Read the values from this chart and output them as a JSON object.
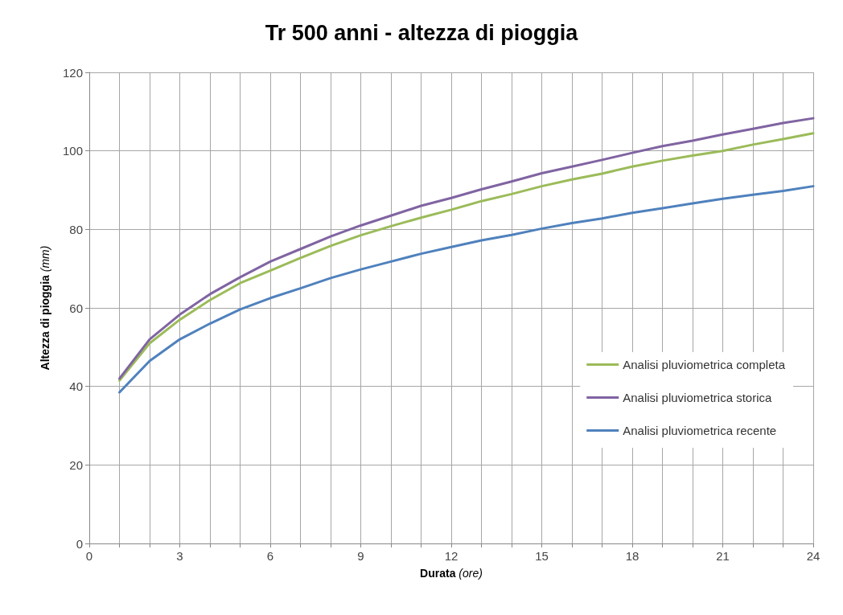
{
  "chart_data": {
    "type": "line",
    "title": "Tr 500 anni - altezza di pioggia",
    "xlabel": "Durata (ore)",
    "ylabel": "Altezza di pioggia (mm)",
    "x": [
      1,
      2,
      3,
      4,
      5,
      6,
      7,
      8,
      9,
      10,
      11,
      12,
      13,
      14,
      15,
      16,
      17,
      18,
      19,
      20,
      21,
      22,
      23,
      24
    ],
    "series": [
      {
        "name": "Analisi pluviometrica completa",
        "color": "#9bbb59",
        "values": [
          41.5,
          51,
          57,
          62,
          66.3,
          69.5,
          72.7,
          75.8,
          78.5,
          80.8,
          83,
          85,
          87.2,
          89,
          91,
          92.7,
          94.2,
          96,
          97.5,
          98.8,
          100,
          101.6,
          103,
          104.5
        ]
      },
      {
        "name": "Analisi pluviometrica storica",
        "color": "#8064a2",
        "values": [
          42,
          52,
          58.3,
          63.5,
          67.8,
          71.8,
          75,
          78.2,
          81,
          83.5,
          86,
          88,
          90.2,
          92.2,
          94.3,
          96,
          97.7,
          99.5,
          101.2,
          102.6,
          104.2,
          105.6,
          107.1,
          108.3
        ]
      },
      {
        "name": "Analisi pluviometrica recente",
        "color": "#4f81bd",
        "values": [
          38.5,
          46.5,
          52,
          56,
          59.6,
          62.5,
          65,
          67.6,
          69.8,
          71.8,
          73.8,
          75.5,
          77.2,
          78.6,
          80.2,
          81.6,
          82.8,
          84.2,
          85.4,
          86.6,
          87.8,
          88.8,
          89.8,
          91
        ]
      }
    ],
    "xlim": [
      0,
      24
    ],
    "xticks": [
      0,
      {
        "value": 1,
        "label": null
      },
      {
        "value": 2,
        "label": null
      },
      3,
      {
        "value": 4,
        "label": null
      },
      {
        "value": 5,
        "label": null
      },
      6,
      {
        "value": 7,
        "label": null
      },
      {
        "value": 8,
        "label": null
      },
      9,
      {
        "value": 10,
        "label": null
      },
      {
        "value": 11,
        "label": null
      },
      12,
      {
        "value": 13,
        "label": null
      },
      {
        "value": 14,
        "label": null
      },
      15,
      {
        "value": 16,
        "label": null
      },
      {
        "value": 17,
        "label": null
      },
      18,
      {
        "value": 19,
        "label": null
      },
      {
        "value": 20,
        "label": null
      },
      21,
      {
        "value": 22,
        "label": null
      },
      {
        "value": 23,
        "label": null
      },
      24
    ],
    "ylim": [
      0,
      120
    ],
    "yticks": [
      0,
      20,
      40,
      60,
      80,
      100,
      120
    ],
    "grid": true,
    "legend": "right",
    "marker": "none",
    "line_style": "solid"
  }
}
